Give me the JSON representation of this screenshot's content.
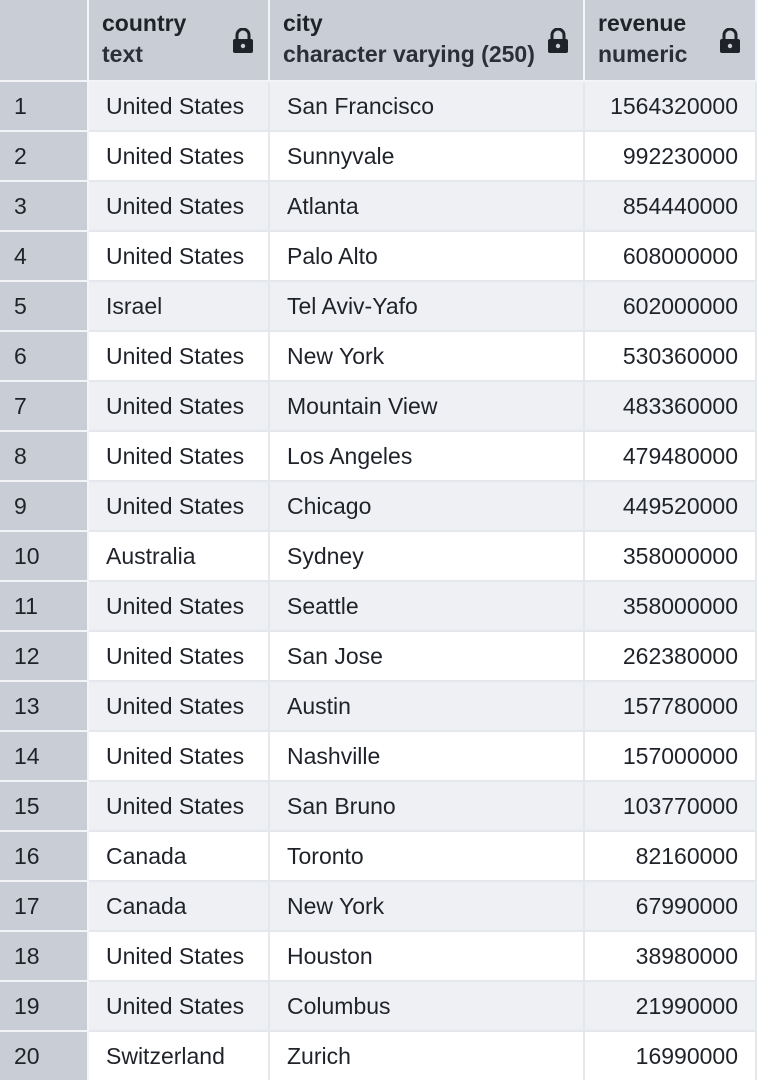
{
  "columns": [
    {
      "name": "country",
      "type": "text",
      "icon": "lock-icon"
    },
    {
      "name": "city",
      "type": "character varying (250)",
      "icon": "lock-icon"
    },
    {
      "name": "revenue",
      "type": "numeric",
      "icon": "lock-icon"
    }
  ],
  "rows": [
    {
      "n": "1",
      "country": "United States",
      "city": "San Francisco",
      "revenue": "1564320000"
    },
    {
      "n": "2",
      "country": "United States",
      "city": "Sunnyvale",
      "revenue": "992230000"
    },
    {
      "n": "3",
      "country": "United States",
      "city": "Atlanta",
      "revenue": "854440000"
    },
    {
      "n": "4",
      "country": "United States",
      "city": "Palo Alto",
      "revenue": "608000000"
    },
    {
      "n": "5",
      "country": "Israel",
      "city": "Tel Aviv-Yafo",
      "revenue": "602000000"
    },
    {
      "n": "6",
      "country": "United States",
      "city": "New York",
      "revenue": "530360000"
    },
    {
      "n": "7",
      "country": "United States",
      "city": "Mountain View",
      "revenue": "483360000"
    },
    {
      "n": "8",
      "country": "United States",
      "city": "Los Angeles",
      "revenue": "479480000"
    },
    {
      "n": "9",
      "country": "United States",
      "city": "Chicago",
      "revenue": "449520000"
    },
    {
      "n": "10",
      "country": "Australia",
      "city": "Sydney",
      "revenue": "358000000"
    },
    {
      "n": "11",
      "country": "United States",
      "city": "Seattle",
      "revenue": "358000000"
    },
    {
      "n": "12",
      "country": "United States",
      "city": "San Jose",
      "revenue": "262380000"
    },
    {
      "n": "13",
      "country": "United States",
      "city": "Austin",
      "revenue": "157780000"
    },
    {
      "n": "14",
      "country": "United States",
      "city": "Nashville",
      "revenue": "157000000"
    },
    {
      "n": "15",
      "country": "United States",
      "city": "San Bruno",
      "revenue": "103770000"
    },
    {
      "n": "16",
      "country": "Canada",
      "city": "Toronto",
      "revenue": "82160000"
    },
    {
      "n": "17",
      "country": "Canada",
      "city": "New York",
      "revenue": "67990000"
    },
    {
      "n": "18",
      "country": "United States",
      "city": "Houston",
      "revenue": "38980000"
    },
    {
      "n": "19",
      "country": "United States",
      "city": "Columbus",
      "revenue": "21990000"
    },
    {
      "n": "20",
      "country": "Switzerland",
      "city": "Zurich",
      "revenue": "16990000"
    }
  ],
  "colors": {
    "header_bg": "#c8cdd6",
    "stripe_bg": "#eef0f4",
    "row_bg": "#ffffff"
  }
}
